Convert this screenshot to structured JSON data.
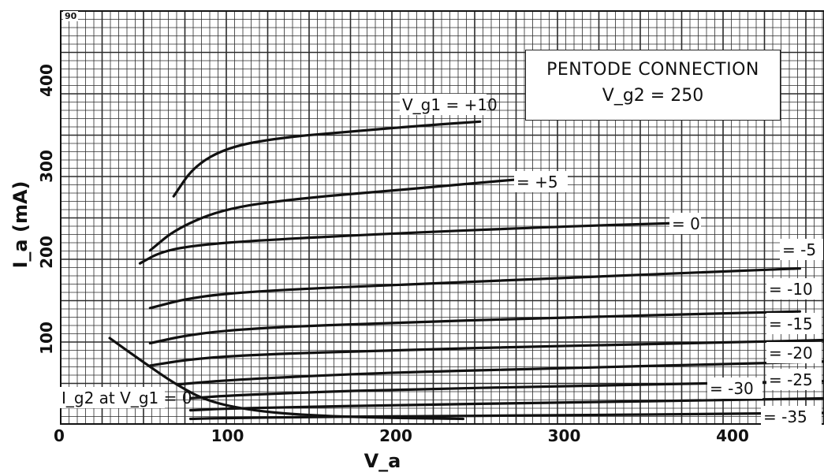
{
  "chart_data": {
    "type": "line",
    "title": "PENTODE CONNECTION",
    "subtitle": "V_g2 = 250",
    "xlabel": "V_a",
    "ylabel": "I_a (mA)",
    "corner_number": "90",
    "xlim": [
      0,
      460
    ],
    "ylim": [
      0,
      470
    ],
    "x_ticks": [
      0,
      100,
      200,
      300,
      400
    ],
    "y_ticks": [
      100,
      200,
      300,
      400
    ],
    "grid": true,
    "series": [
      {
        "name": "V_g1 = +10",
        "x": [
          68,
          80,
          100,
          130,
          170,
          220,
          250
        ],
        "y": [
          265,
          300,
          322,
          333,
          340,
          348,
          352
        ]
      },
      {
        "name": "= +5",
        "x": [
          54,
          70,
          100,
          150,
          200,
          250,
          275
        ],
        "y": [
          202,
          228,
          252,
          264,
          272,
          281,
          285
        ]
      },
      {
        "name": "= 0",
        "x": [
          48,
          60,
          80,
          120,
          200,
          300,
          370
        ],
        "y": [
          187,
          200,
          208,
          214,
          222,
          230,
          234
        ]
      },
      {
        "name": "= -5",
        "x": [
          54,
          80,
          120,
          200,
          300,
          400,
          440
        ],
        "y": [
          135,
          148,
          155,
          162,
          170,
          178,
          181
        ]
      },
      {
        "name": "= -10",
        "x": [
          54,
          80,
          120,
          200,
          300,
          400,
          440
        ],
        "y": [
          94,
          105,
          112,
          118,
          124,
          129,
          131
        ]
      },
      {
        "name": "= -15",
        "x": [
          54,
          80,
          120,
          200,
          300,
          400,
          460
        ],
        "y": [
          68,
          76,
          81,
          86,
          91,
          95,
          98
        ]
      },
      {
        "name": "= -20",
        "x": [
          70,
          100,
          150,
          200,
          300,
          400,
          460
        ],
        "y": [
          46,
          51,
          56,
          60,
          65,
          70,
          73
        ]
      },
      {
        "name": "= -25",
        "x": [
          78,
          100,
          150,
          200,
          300,
          400,
          460
        ],
        "y": [
          30,
          33,
          37,
          40,
          44,
          48,
          50
        ]
      },
      {
        "name": "= -30",
        "x": [
          78,
          100,
          150,
          200,
          300,
          400,
          460
        ],
        "y": [
          16,
          18,
          20,
          22,
          25,
          28,
          30
        ]
      },
      {
        "name": "= -35",
        "x": [
          78,
          100,
          150,
          200,
          300,
          400,
          460
        ],
        "y": [
          6,
          7,
          8,
          9,
          10,
          12,
          13
        ]
      },
      {
        "name": "I_g2 at V_g1 = 0",
        "x": [
          30,
          50,
          70,
          90,
          120,
          160,
          200,
          240
        ],
        "y": [
          100,
          72,
          45,
          25,
          14,
          9,
          7,
          6
        ]
      }
    ],
    "annotations": [
      {
        "text": "V_g1 = +10"
      },
      {
        "text": "= +5"
      },
      {
        "text": "= 0"
      },
      {
        "text": "= -5"
      },
      {
        "text": "= -10"
      },
      {
        "text": "= -15"
      },
      {
        "text": "= -20"
      },
      {
        "text": "= -25"
      },
      {
        "text": "= -30"
      },
      {
        "text": "= -35"
      },
      {
        "text": "I_g2 at V_g1 = 0"
      }
    ],
    "colors": {
      "grid": "#2a2a2a",
      "curve": "#111111",
      "background": "#ffffff"
    }
  }
}
